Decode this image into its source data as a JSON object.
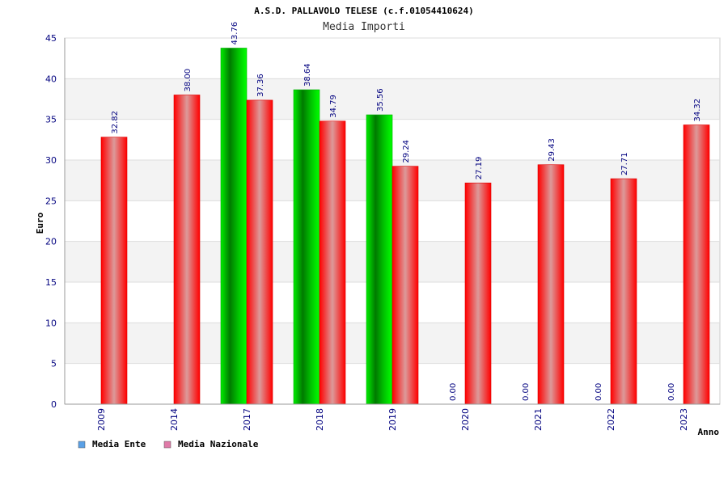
{
  "chart_data": {
    "type": "bar",
    "title": "A.S.D. PALLAVOLO TELESE (c.f.01054410624)",
    "subtitle": "Media Importi",
    "ylabel": "Euro",
    "xlabel": "Anno",
    "ylim": [
      0,
      45
    ],
    "yticks": [
      "0",
      "5",
      "10",
      "15",
      "20",
      "25",
      "30",
      "35",
      "40",
      "45"
    ],
    "categories": [
      "2009",
      "2014",
      "2017",
      "2018",
      "2019",
      "2020",
      "2021",
      "2022",
      "2023"
    ],
    "series": [
      {
        "name": "Media Ente",
        "values": [
          null,
          null,
          43.76,
          38.64,
          35.56,
          0.0,
          0.0,
          0.0,
          0.0
        ],
        "labels": [
          "",
          "",
          "43.76",
          "38.64",
          "35.56",
          "0.00",
          "0.00",
          "0.00",
          "0.00"
        ],
        "color": "#00cc00",
        "legend_color": "#5aa0e6"
      },
      {
        "name": "Media Nazionale",
        "values": [
          32.82,
          38.0,
          37.36,
          34.79,
          29.24,
          27.19,
          29.43,
          27.71,
          34.32
        ],
        "labels": [
          "32.82",
          "38.00",
          "37.36",
          "34.79",
          "29.24",
          "27.19",
          "29.43",
          "27.71",
          "34.32"
        ],
        "color": "#ff0000",
        "legend_color": "#e07aa8"
      }
    ],
    "grid": true,
    "legend": "bottom-left"
  }
}
